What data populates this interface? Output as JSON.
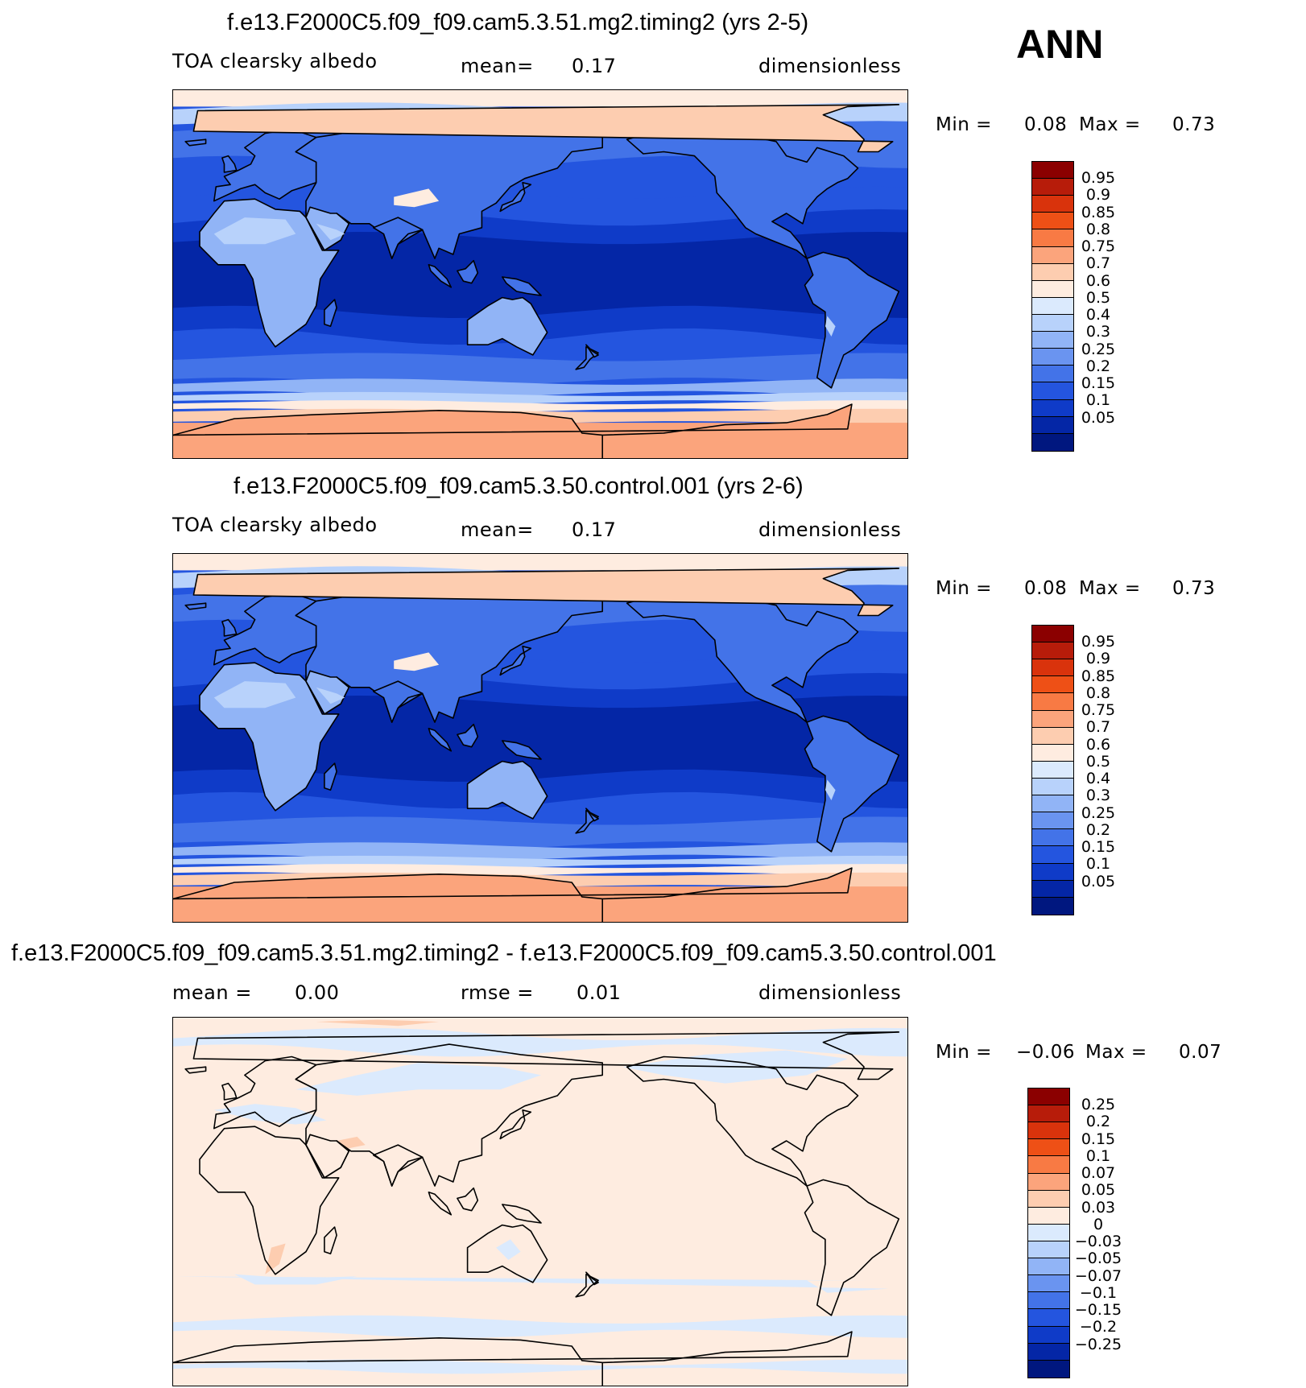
{
  "season": "ANN",
  "panels": [
    {
      "title": "f.e13.F2000C5.f09_f09.cam5.3.51.mg2.timing2 (yrs 2-5)",
      "variable": "TOA clearsky albedo",
      "stat_label": "mean=",
      "stat_value": "0.17",
      "units": "dimensionless",
      "min_label": "Min =",
      "min_value": "0.08",
      "max_label": "Max =",
      "max_value": "0.73"
    },
    {
      "title": "f.e13.F2000C5.f09_f09.cam5.3.50.control.001 (yrs 2-6)",
      "variable": "TOA clearsky albedo",
      "stat_label": "mean=",
      "stat_value": "0.17",
      "units": "dimensionless",
      "min_label": "Min =",
      "min_value": "0.08",
      "max_label": "Max =",
      "max_value": "0.73"
    },
    {
      "title": "f.e13.F2000C5.f09_f09.cam5.3.51.mg2.timing2 - f.e13.F2000C5.f09_f09.cam5.3.50.control.001",
      "mean_label": "mean =",
      "mean_value": "0.00",
      "rmse_label": "rmse =",
      "rmse_value": "0.01",
      "units": "dimensionless",
      "min_label": "Min =",
      "min_value": "−0.06",
      "max_label": "Max =",
      "max_value": "0.07"
    }
  ],
  "colorbars": {
    "absolute": {
      "colors": [
        "#8b0000",
        "#b71c0a",
        "#d9330c",
        "#ee5016",
        "#f87a44",
        "#fba47c",
        "#fdcdb0",
        "#feece0",
        "#dbeafd",
        "#b8d2fb",
        "#91b4f6",
        "#6a94f0",
        "#4373e8",
        "#2455df",
        "#0f3bc8",
        "#0426a6",
        "#00177f"
      ],
      "labels": [
        "0.95",
        "0.9",
        "0.85",
        "0.8",
        "0.75",
        "0.7",
        "0.6",
        "0.5",
        "0.4",
        "0.3",
        "0.25",
        "0.2",
        "0.15",
        "0.1",
        "0.05"
      ]
    },
    "difference": {
      "colors": [
        "#8b0000",
        "#b71c0a",
        "#d9330c",
        "#ee5016",
        "#f87a44",
        "#fba47c",
        "#fdcdb0",
        "#feece0",
        "#dbeafd",
        "#b8d2fb",
        "#91b4f6",
        "#6a94f0",
        "#4373e8",
        "#2455df",
        "#0f3bc8",
        "#0426a6",
        "#00177f"
      ],
      "labels": [
        "0.25",
        "0.2",
        "0.15",
        "0.1",
        "0.07",
        "0.05",
        "0.03",
        "0",
        "−0.03",
        "−0.05",
        "−0.07",
        "−0.1",
        "−0.15",
        "−0.2",
        "−0.25"
      ]
    }
  },
  "map_colors": {
    "polar_high": "#fba47c",
    "polar_mid": "#fdcdb0",
    "ice_edge": "#feece0",
    "ocean_tropics": "#0f3bc8",
    "ocean_deep": "#0426a6",
    "ocean_mid": "#2455df",
    "ocean_subpolar": "#4373e8",
    "ocean_highlat": "#91b4f6",
    "land_bright": "#b8d2fb",
    "diff_base": "#feece0",
    "diff_negative": "#dbeafd",
    "diff_positive": "#fdcdb0",
    "coastline": "#000000"
  }
}
